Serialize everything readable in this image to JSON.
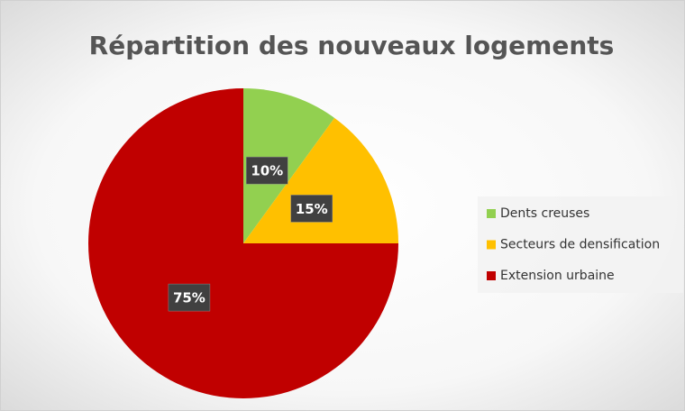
{
  "chart_data": {
    "type": "pie",
    "title": "Répartition des nouveaux logements",
    "categories": [
      "Dents creuses",
      "Secteurs de densification",
      "Extension urbaine"
    ],
    "values": [
      10,
      15,
      75
    ],
    "value_labels": [
      "10%",
      "15%",
      "75%"
    ],
    "colors": [
      "#92d050",
      "#ffc000",
      "#c00000"
    ],
    "legend": "right"
  }
}
